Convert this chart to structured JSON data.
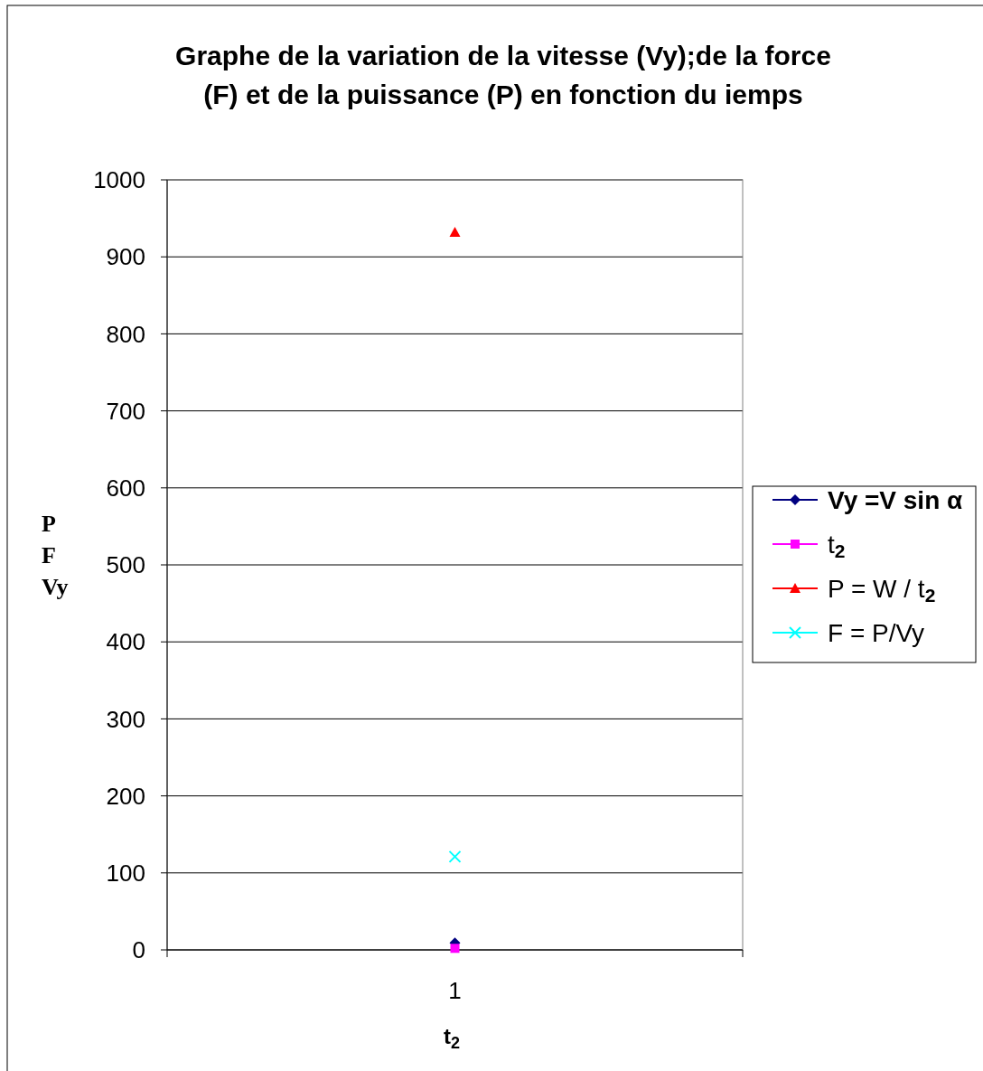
{
  "chart_data": {
    "type": "line",
    "title": "Graphe de la variation de la vitesse (Vy);de la force (F) et de la puissance (P) en fonction du iemps",
    "xlabel": "t$_{2}$",
    "ylabel": "P F Vy",
    "categories": [
      "1"
    ],
    "ylim": [
      0,
      1000
    ],
    "yticks": [
      0,
      100,
      200,
      300,
      400,
      500,
      600,
      700,
      800,
      900,
      1000
    ],
    "grid": "y",
    "legend": "right",
    "series": [
      {
        "name": "Vy =V sin α",
        "color": "#000080",
        "marker": "diamond",
        "values": [
          9
        ]
      },
      {
        "name": "t$_{2}$",
        "color": "#ff00ff",
        "marker": "square",
        "values": [
          2
        ]
      },
      {
        "name": "P = W / t$_{2}$",
        "color": "#ff0000",
        "marker": "triangle",
        "values": [
          932
        ]
      },
      {
        "name": "F = P/Vy",
        "color": "#00ffff",
        "marker": "cross",
        "values": [
          121
        ]
      }
    ]
  }
}
